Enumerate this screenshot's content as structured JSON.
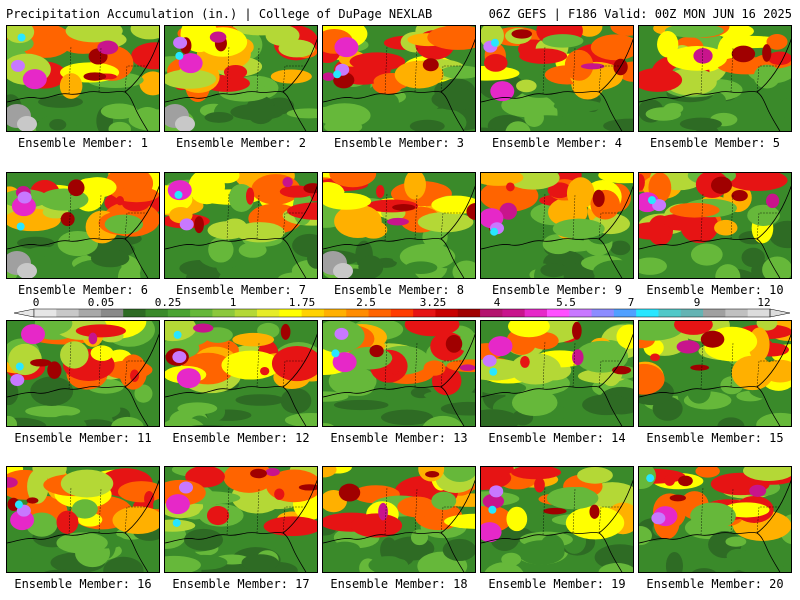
{
  "header": {
    "left_title": "Precipitation Accumulation (in.) | College of DuPage NEXLAB",
    "right_title": "06Z GEFS | F186 Valid: 00Z MON JUN 16 2025"
  },
  "colorbar": {
    "tick_labels": [
      "0",
      "0.05",
      "0.25",
      "1",
      "1.75",
      "2.5",
      "3.25",
      "4",
      "5.5",
      "7",
      "9",
      "12"
    ],
    "colors": [
      "#e6e6e6",
      "#c8c8c8",
      "#a8a8a8",
      "#8a8a8a",
      "#2e6b24",
      "#3a8a2a",
      "#4aa332",
      "#66b83a",
      "#8cc83c",
      "#b4d836",
      "#e6ec28",
      "#ffff00",
      "#ffd200",
      "#ffb000",
      "#ff8c00",
      "#ff6400",
      "#ff3c00",
      "#e61414",
      "#c80000",
      "#a00000",
      "#b4146e",
      "#c8148c",
      "#e628c8",
      "#ff50ff",
      "#c878ff",
      "#8c8cff",
      "#50a0ff",
      "#28e6ff",
      "#50c8c8",
      "#64b4b4",
      "#a0a0a0",
      "#c0c0c0",
      "#dcdcdc"
    ]
  },
  "panels": [
    {
      "label": "Ensemble Member: 1"
    },
    {
      "label": "Ensemble Member: 2"
    },
    {
      "label": "Ensemble Member: 3"
    },
    {
      "label": "Ensemble Member: 4"
    },
    {
      "label": "Ensemble Member: 5"
    },
    {
      "label": "Ensemble Member: 6"
    },
    {
      "label": "Ensemble Member: 7"
    },
    {
      "label": "Ensemble Member: 8"
    },
    {
      "label": "Ensemble Member: 9"
    },
    {
      "label": "Ensemble Member: 10"
    },
    {
      "label": "Ensemble Member: 11"
    },
    {
      "label": "Ensemble Member: 12"
    },
    {
      "label": "Ensemble Member: 13"
    },
    {
      "label": "Ensemble Member: 14"
    },
    {
      "label": "Ensemble Member: 15"
    },
    {
      "label": "Ensemble Member: 16"
    },
    {
      "label": "Ensemble Member: 17"
    },
    {
      "label": "Ensemble Member: 18"
    },
    {
      "label": "Ensemble Member: 19"
    },
    {
      "label": "Ensemble Member: 20"
    }
  ]
}
